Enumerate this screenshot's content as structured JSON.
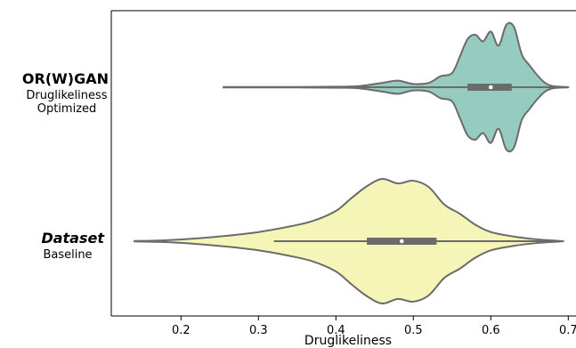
{
  "chart_data": {
    "type": "violin",
    "orientation": "horizontal",
    "xlabel": "Druglikeliness",
    "xlim": [
      0.11,
      0.71
    ],
    "xticks": [
      0.2,
      0.3,
      0.4,
      0.5,
      0.6,
      0.7
    ],
    "xtick_labels": [
      "0.2",
      "0.3",
      "0.4",
      "0.5",
      "0.6",
      "0.7"
    ],
    "grid": false,
    "series": [
      {
        "name": "OR(W)GAN",
        "subtitle": "Druglikeliness\nOptimized",
        "italic": false,
        "color": "#96cbbf",
        "min": 0.255,
        "max": 0.698,
        "q1": 0.57,
        "median": 0.6,
        "q3": 0.627,
        "whisker_low": 0.255,
        "whisker_high": 0.698,
        "density": [
          [
            0.255,
            0.2
          ],
          [
            0.3,
            0.2
          ],
          [
            0.35,
            0.2
          ],
          [
            0.4,
            0.5
          ],
          [
            0.43,
            1
          ],
          [
            0.46,
            4
          ],
          [
            0.48,
            6
          ],
          [
            0.5,
            3
          ],
          [
            0.52,
            4
          ],
          [
            0.535,
            10
          ],
          [
            0.55,
            13
          ],
          [
            0.56,
            28
          ],
          [
            0.57,
            44
          ],
          [
            0.58,
            48
          ],
          [
            0.59,
            42
          ],
          [
            0.6,
            51
          ],
          [
            0.61,
            38
          ],
          [
            0.62,
            57
          ],
          [
            0.63,
            55
          ],
          [
            0.64,
            30
          ],
          [
            0.65,
            20
          ],
          [
            0.66,
            11
          ],
          [
            0.67,
            4
          ],
          [
            0.68,
            1
          ],
          [
            0.698,
            0.2
          ]
        ]
      },
      {
        "name": "Dataset",
        "subtitle": "Baseline",
        "italic": true,
        "color": "#f5f5b8",
        "min": 0.14,
        "max": 0.69,
        "q1": 0.44,
        "median": 0.485,
        "q3": 0.53,
        "whisker_low": 0.32,
        "whisker_high": 0.69,
        "density": [
          [
            0.14,
            0.2
          ],
          [
            0.18,
            1
          ],
          [
            0.22,
            3
          ],
          [
            0.26,
            6
          ],
          [
            0.3,
            10
          ],
          [
            0.34,
            16
          ],
          [
            0.37,
            22
          ],
          [
            0.4,
            33
          ],
          [
            0.42,
            47
          ],
          [
            0.44,
            60
          ],
          [
            0.46,
            68
          ],
          [
            0.48,
            63
          ],
          [
            0.5,
            66
          ],
          [
            0.52,
            59
          ],
          [
            0.54,
            40
          ],
          [
            0.56,
            30
          ],
          [
            0.58,
            18
          ],
          [
            0.6,
            10
          ],
          [
            0.63,
            5
          ],
          [
            0.66,
            2
          ],
          [
            0.69,
            0.2
          ]
        ]
      }
    ],
    "colors": {
      "edge": "#6b6b6b",
      "median_dot": "#ffffff"
    }
  }
}
